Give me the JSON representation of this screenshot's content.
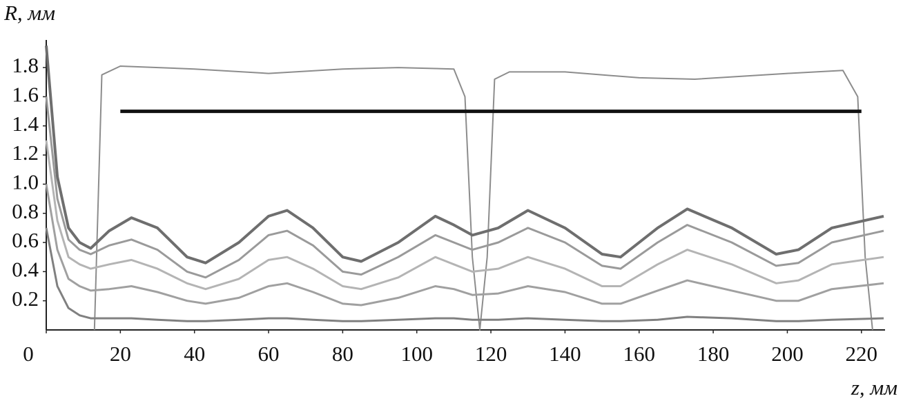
{
  "chart_data": {
    "type": "line",
    "y_label": "R, мм",
    "x_label": "z, мм",
    "xlim": [
      0,
      226
    ],
    "ylim": [
      0,
      1.98
    ],
    "xticks": [
      0,
      20,
      40,
      60,
      80,
      100,
      120,
      140,
      160,
      180,
      200,
      220
    ],
    "yticks": [
      0.2,
      0.4,
      0.6,
      0.8,
      {
        "value": 1,
        "label": "1.0"
      },
      1.2,
      1.4,
      1.6,
      1.8
    ],
    "grid": false,
    "series": [
      {
        "color": "#8c8c8c",
        "width": 2,
        "x": [
          13,
          15,
          20,
          40,
          60,
          80,
          95,
          110,
          113,
          115,
          117,
          119,
          121,
          125,
          140,
          160,
          175,
          200,
          215,
          219,
          221,
          223
        ],
        "values": [
          0,
          1.75,
          1.81,
          1.79,
          1.76,
          1.79,
          1.8,
          1.79,
          1.6,
          0.5,
          0,
          0.5,
          1.72,
          1.77,
          1.77,
          1.73,
          1.72,
          1.76,
          1.78,
          1.6,
          0.5,
          0
        ]
      },
      {
        "color": "#111111",
        "width": 5,
        "x": [
          20,
          220
        ],
        "values": [
          1.5,
          1.5
        ]
      },
      {
        "color": "#6e6e6e",
        "width": 4,
        "x": [
          0,
          3,
          6,
          9,
          12,
          17,
          23,
          30,
          38,
          43,
          52,
          60,
          65,
          72,
          80,
          85,
          95,
          105,
          110,
          115,
          122,
          130,
          140,
          150,
          155,
          165,
          173,
          185,
          197,
          203,
          212,
          226
        ],
        "values": [
          1.95,
          1.05,
          0.7,
          0.6,
          0.56,
          0.68,
          0.77,
          0.7,
          0.5,
          0.46,
          0.6,
          0.78,
          0.82,
          0.7,
          0.5,
          0.47,
          0.6,
          0.78,
          0.72,
          0.65,
          0.7,
          0.82,
          0.7,
          0.52,
          0.5,
          0.7,
          0.83,
          0.7,
          0.52,
          0.55,
          0.7,
          0.78
        ]
      },
      {
        "color": "#9a9a9a",
        "width": 3,
        "x": [
          0,
          3,
          6,
          9,
          12,
          17,
          23,
          30,
          38,
          43,
          52,
          60,
          65,
          72,
          80,
          85,
          95,
          105,
          110,
          115,
          122,
          130,
          140,
          150,
          155,
          165,
          173,
          185,
          197,
          203,
          212,
          226
        ],
        "values": [
          1.6,
          0.9,
          0.62,
          0.55,
          0.52,
          0.58,
          0.62,
          0.55,
          0.4,
          0.36,
          0.48,
          0.65,
          0.68,
          0.58,
          0.4,
          0.38,
          0.5,
          0.65,
          0.6,
          0.55,
          0.6,
          0.7,
          0.6,
          0.44,
          0.42,
          0.6,
          0.72,
          0.6,
          0.44,
          0.46,
          0.6,
          0.68
        ]
      },
      {
        "color": "#b4b4b4",
        "width": 3,
        "x": [
          0,
          3,
          6,
          9,
          12,
          17,
          23,
          30,
          38,
          43,
          52,
          60,
          65,
          72,
          80,
          85,
          95,
          105,
          110,
          115,
          122,
          130,
          140,
          150,
          155,
          165,
          173,
          185,
          197,
          203,
          212,
          226
        ],
        "values": [
          1.3,
          0.75,
          0.5,
          0.45,
          0.42,
          0.45,
          0.48,
          0.42,
          0.32,
          0.28,
          0.35,
          0.48,
          0.5,
          0.42,
          0.3,
          0.28,
          0.36,
          0.5,
          0.45,
          0.4,
          0.42,
          0.5,
          0.42,
          0.3,
          0.3,
          0.45,
          0.55,
          0.45,
          0.32,
          0.34,
          0.45,
          0.5
        ]
      },
      {
        "color": "#a0a0a0",
        "width": 3,
        "x": [
          0,
          3,
          6,
          9,
          12,
          17,
          23,
          30,
          38,
          43,
          52,
          60,
          65,
          72,
          80,
          85,
          95,
          105,
          110,
          115,
          122,
          130,
          140,
          150,
          155,
          165,
          173,
          185,
          197,
          203,
          212,
          226
        ],
        "values": [
          1.0,
          0.55,
          0.35,
          0.3,
          0.27,
          0.28,
          0.3,
          0.26,
          0.2,
          0.18,
          0.22,
          0.3,
          0.32,
          0.26,
          0.18,
          0.17,
          0.22,
          0.3,
          0.28,
          0.24,
          0.25,
          0.3,
          0.26,
          0.18,
          0.18,
          0.27,
          0.34,
          0.27,
          0.2,
          0.2,
          0.28,
          0.32
        ]
      },
      {
        "color": "#808080",
        "width": 3,
        "x": [
          0,
          3,
          6,
          9,
          12,
          17,
          23,
          30,
          38,
          43,
          52,
          60,
          65,
          72,
          80,
          85,
          95,
          105,
          110,
          115,
          122,
          130,
          140,
          150,
          155,
          165,
          173,
          185,
          197,
          203,
          212,
          226
        ],
        "values": [
          0.7,
          0.3,
          0.15,
          0.1,
          0.08,
          0.08,
          0.08,
          0.07,
          0.06,
          0.06,
          0.07,
          0.08,
          0.08,
          0.07,
          0.06,
          0.06,
          0.07,
          0.08,
          0.08,
          0.07,
          0.07,
          0.08,
          0.07,
          0.06,
          0.06,
          0.07,
          0.09,
          0.08,
          0.06,
          0.06,
          0.07,
          0.08
        ]
      }
    ]
  }
}
